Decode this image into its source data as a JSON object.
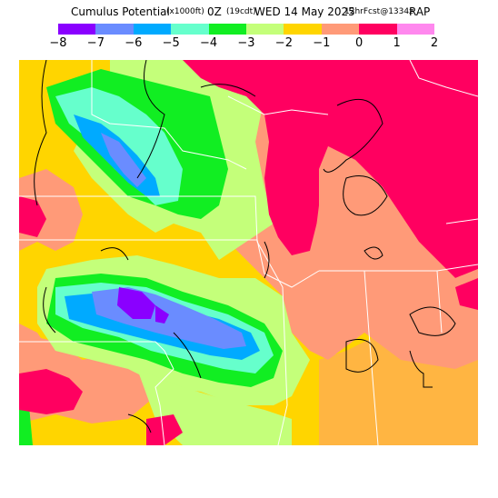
{
  "title": {
    "main": "Cumulus Potential",
    "units": "(x1000ft)",
    "time": "0Z",
    "local": "(19cdt)",
    "date": "WED 14 May 2025",
    "forecast": "12hrFcst@1334z",
    "model": "RAP"
  },
  "colorbar": {
    "tick_labels": [
      "−8",
      "−7",
      "−6",
      "−5",
      "−4",
      "−3",
      "−2",
      "−1",
      "0",
      "1",
      "2"
    ],
    "colors": [
      "#8a00ff",
      "#6a8cff",
      "#00aaff",
      "#66ffcc",
      "#11ee22",
      "#c4ff7a",
      "#ffd500",
      "#ff9a78",
      "#ff0060",
      "#ff88ee"
    ]
  },
  "map": {
    "description_colors": {
      "background": "#ff9a78",
      "state_borders": "#ffffff",
      "contours": "#000000"
    }
  }
}
